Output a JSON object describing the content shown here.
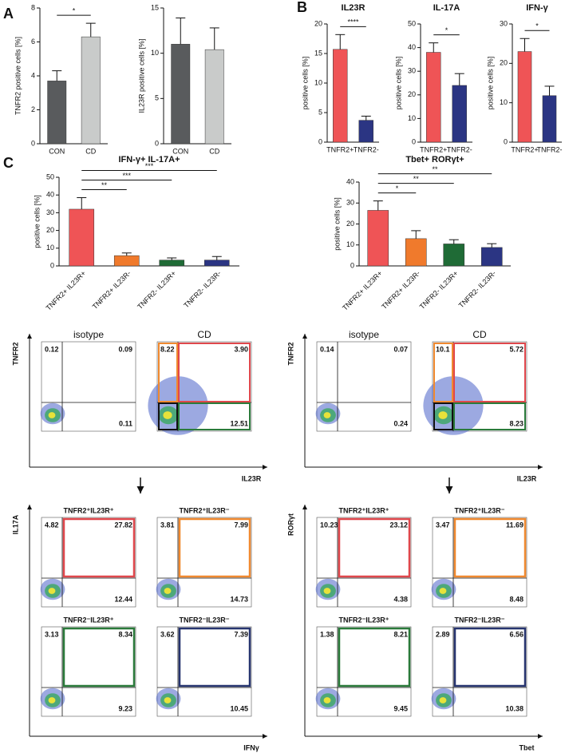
{
  "chart_data": [
    {
      "type": "bar",
      "panel": "A",
      "ylabel": "TNFR2 positive cells [%]",
      "categories": [
        "CON",
        "CD"
      ],
      "values": [
        3.7,
        6.3
      ],
      "errors": [
        0.6,
        0.8
      ],
      "colors": [
        "#595b5d",
        "#c9cbca"
      ],
      "ylim": [
        0,
        8
      ],
      "yticks": [
        0,
        2,
        4,
        6,
        8
      ],
      "comparisons": [
        {
          "between": [
            "CON",
            "CD"
          ],
          "label": "*"
        }
      ]
    },
    {
      "type": "bar",
      "ylabel": "IL23R positive cells [%]",
      "categories": [
        "CON",
        "CD"
      ],
      "values": [
        11,
        10.4
      ],
      "errors": [
        2.9,
        2.4
      ],
      "colors": [
        "#595b5d",
        "#c9cbca"
      ],
      "ylim": [
        0,
        15
      ],
      "yticks": [
        0,
        5,
        10,
        15
      ],
      "comparisons": []
    },
    {
      "type": "bar",
      "panel": "B",
      "title": "IL23R",
      "ylabel": "positive cells [%]",
      "categories": [
        "TNFR2+",
        "TNFR2-"
      ],
      "values": [
        15.7,
        3.7
      ],
      "errors": [
        2.5,
        0.7
      ],
      "colors": [
        "#ef5456",
        "#2b3583"
      ],
      "ylim": [
        0,
        20
      ],
      "yticks": [
        0,
        5,
        10,
        15,
        20
      ],
      "comparisons": [
        {
          "between": [
            "TNFR2+",
            "TNFR2-"
          ],
          "label": "****"
        }
      ]
    },
    {
      "type": "bar",
      "title": "IL-17A",
      "ylabel": "positive cells [%]",
      "categories": [
        "TNFR2+",
        "TNFR2-"
      ],
      "values": [
        38,
        24
      ],
      "errors": [
        4,
        5
      ],
      "colors": [
        "#ef5456",
        "#2b3583"
      ],
      "ylim": [
        0,
        50
      ],
      "yticks": [
        0,
        10,
        20,
        30,
        40,
        50
      ],
      "comparisons": [
        {
          "between": [
            "TNFR2+",
            "TNFR2-"
          ],
          "label": "*"
        }
      ]
    },
    {
      "type": "bar",
      "title": "IFN-γ",
      "ylabel": "positive cells [%]",
      "categories": [
        "TNFR2+",
        "TNFR2-"
      ],
      "values": [
        23,
        11.8
      ],
      "errors": [
        3.3,
        2.4
      ],
      "colors": [
        "#ef5456",
        "#2b3583"
      ],
      "ylim": [
        0,
        30
      ],
      "yticks": [
        0,
        10,
        20,
        30
      ],
      "comparisons": [
        {
          "between": [
            "TNFR2+",
            "TNFR2-"
          ],
          "label": "*"
        }
      ]
    },
    {
      "type": "bar",
      "panel": "C",
      "title": "IFN-γ+ IL-17A+",
      "ylabel": "positive cells [%]",
      "categories": [
        "TNFR2+ IL23R+",
        "TNFR2+ IL23R-",
        "TNFR2- IL23R+",
        "TNFR2- IL23R-"
      ],
      "values": [
        32,
        5.8,
        3.3,
        3.3
      ],
      "errors": [
        6.5,
        1.5,
        1.2,
        2
      ],
      "colors": [
        "#ef5456",
        "#f07a2c",
        "#1f6b36",
        "#2b3583"
      ],
      "ylim": [
        0,
        50
      ],
      "yticks": [
        0,
        10,
        20,
        30,
        40,
        50
      ],
      "comparisons": [
        {
          "between": [
            "TNFR2+ IL23R+",
            "TNFR2+ IL23R-"
          ],
          "label": "**"
        },
        {
          "between": [
            "TNFR2+ IL23R+",
            "TNFR2- IL23R+"
          ],
          "label": "***"
        },
        {
          "between": [
            "TNFR2+ IL23R+",
            "TNFR2- IL23R-"
          ],
          "label": "***"
        }
      ]
    },
    {
      "type": "bar",
      "title": "Tbet+ RORγt+",
      "ylabel": "positive cells [%]",
      "categories": [
        "TNFR2+ IL23R+",
        "TNFR2+ IL23R-",
        "TNFR2- IL23R+",
        "TNFR2- IL23R-"
      ],
      "values": [
        26.5,
        13,
        10.5,
        8.8
      ],
      "errors": [
        4.5,
        3.8,
        2,
        1.8
      ],
      "colors": [
        "#ef5456",
        "#f07a2c",
        "#1f6b36",
        "#2b3583"
      ],
      "ylim": [
        0,
        40
      ],
      "yticks": [
        0,
        10,
        20,
        30,
        40
      ],
      "comparisons": [
        {
          "between": [
            "TNFR2+ IL23R+",
            "TNFR2+ IL23R-"
          ],
          "label": "*"
        },
        {
          "between": [
            "TNFR2+ IL23R+",
            "TNFR2- IL23R+"
          ],
          "label": "**"
        },
        {
          "between": [
            "TNFR2+ IL23R+",
            "TNFR2- IL23R-"
          ],
          "label": "**"
        }
      ]
    }
  ],
  "flow": [
    {
      "y_label": "TNFR2",
      "x_label": "IL23R",
      "plots": [
        {
          "title": "isotype",
          "quadrants": [
            "0.12",
            "0.09",
            "0.11"
          ]
        },
        {
          "title": "CD",
          "quadrants": [
            "8.22",
            "3.90",
            "12.51"
          ]
        }
      ]
    },
    {
      "y_label": "IL17A",
      "x_label": "IFNγ",
      "plots": [
        {
          "title": "TNFR2⁺IL23R⁺",
          "color": "#e0474c",
          "quadrants": [
            "4.82",
            "27.82",
            "12.44"
          ]
        },
        {
          "title": "TNFR2⁺IL23R⁻",
          "color": "#f0892f",
          "quadrants": [
            "3.81",
            "7.99",
            "14.73"
          ]
        },
        {
          "title": "TNFR2⁻IL23R⁺",
          "color": "#2a7a3a",
          "quadrants": [
            "3.13",
            "8.34",
            "9.23"
          ]
        },
        {
          "title": "TNFR2⁻IL23R⁻",
          "color": "#26346f",
          "quadrants": [
            "3.62",
            "7.39",
            "10.45"
          ]
        }
      ]
    },
    {
      "y_label": "TNFR2",
      "x_label": "IL23R",
      "plots": [
        {
          "title": "isotype",
          "quadrants": [
            "0.14",
            "0.07",
            "0.24"
          ]
        },
        {
          "title": "CD",
          "quadrants": [
            "10.1",
            "5.72",
            "8.23"
          ]
        }
      ]
    },
    {
      "y_label": "RORγt",
      "x_label": "Tbet",
      "plots": [
        {
          "title": "TNFR2⁺IL23R⁺",
          "color": "#e0474c",
          "quadrants": [
            "10.23",
            "23.12",
            "4.38"
          ]
        },
        {
          "title": "TNFR2⁺IL23R⁻",
          "color": "#f0892f",
          "quadrants": [
            "3.47",
            "11.69",
            "8.48"
          ]
        },
        {
          "title": "TNFR2⁻IL23R⁺",
          "color": "#2a7a3a",
          "quadrants": [
            "1.38",
            "8.21",
            "9.45"
          ]
        },
        {
          "title": "TNFR2⁻IL23R⁻",
          "color": "#26346f",
          "quadrants": [
            "2.89",
            "6.56",
            "10.38"
          ]
        }
      ]
    }
  ]
}
